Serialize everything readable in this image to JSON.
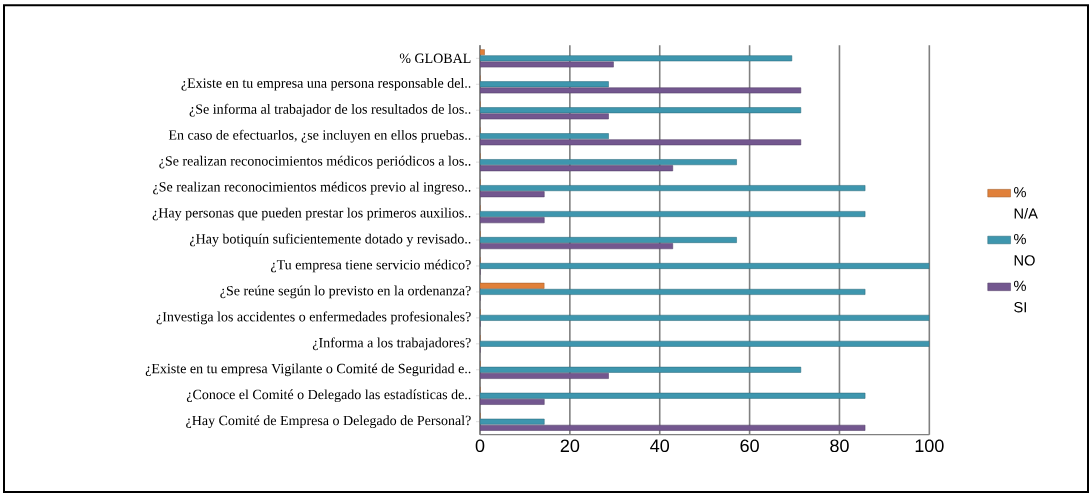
{
  "chart_data": {
    "type": "bar",
    "orientation": "horizontal",
    "categories": [
      "% GLOBAL",
      "¿Existe en tu empresa una persona responsable del..",
      "¿Se informa al trabajador de los resultados de los..",
      "En caso de efectuarlos, ¿se incluyen en ellos pruebas..",
      "¿Se realizan reconocimientos médicos periódicos a los..",
      "¿Se realizan reconocimientos médicos previo al ingreso..",
      "¿Hay personas que pueden prestar los primeros auxilios..",
      "¿Hay botiquín suficientemente dotado y revisado..",
      "¿Tu empresa tiene servicio médico?",
      "¿Se reúne según lo previsto en la ordenanza?",
      "¿Investiga los accidentes o enfermedades profesionales?",
      "¿Informa a los trabajadores?",
      "¿Existe en tu empresa Vigilante o Comité de Seguridad e..",
      "¿Conoce el Comité o Delegado las estadísticas de..",
      "¿Hay Comité de Empresa o Delegado de Personal?"
    ],
    "series": [
      {
        "name": "% N/A",
        "color": "#e0803a",
        "values": [
          1,
          0,
          0,
          0,
          0,
          0,
          0,
          0,
          0,
          14.3,
          0,
          0,
          0,
          0,
          0
        ]
      },
      {
        "name": "% NO",
        "color": "#3e96ae",
        "values": [
          69.4,
          28.6,
          71.4,
          28.6,
          57.1,
          85.7,
          85.7,
          57.1,
          100,
          85.7,
          100,
          100,
          71.4,
          85.7,
          14.3
        ]
      },
      {
        "name": "% SI",
        "color": "#73578f",
        "values": [
          29.7,
          71.4,
          28.6,
          71.4,
          42.9,
          14.3,
          14.3,
          42.9,
          0,
          0,
          0,
          0,
          28.6,
          14.3,
          85.7
        ]
      }
    ],
    "xlim": [
      0,
      100
    ],
    "xticks": [
      0,
      20,
      40,
      60,
      80,
      100
    ],
    "grid": "x",
    "legend": "right"
  }
}
